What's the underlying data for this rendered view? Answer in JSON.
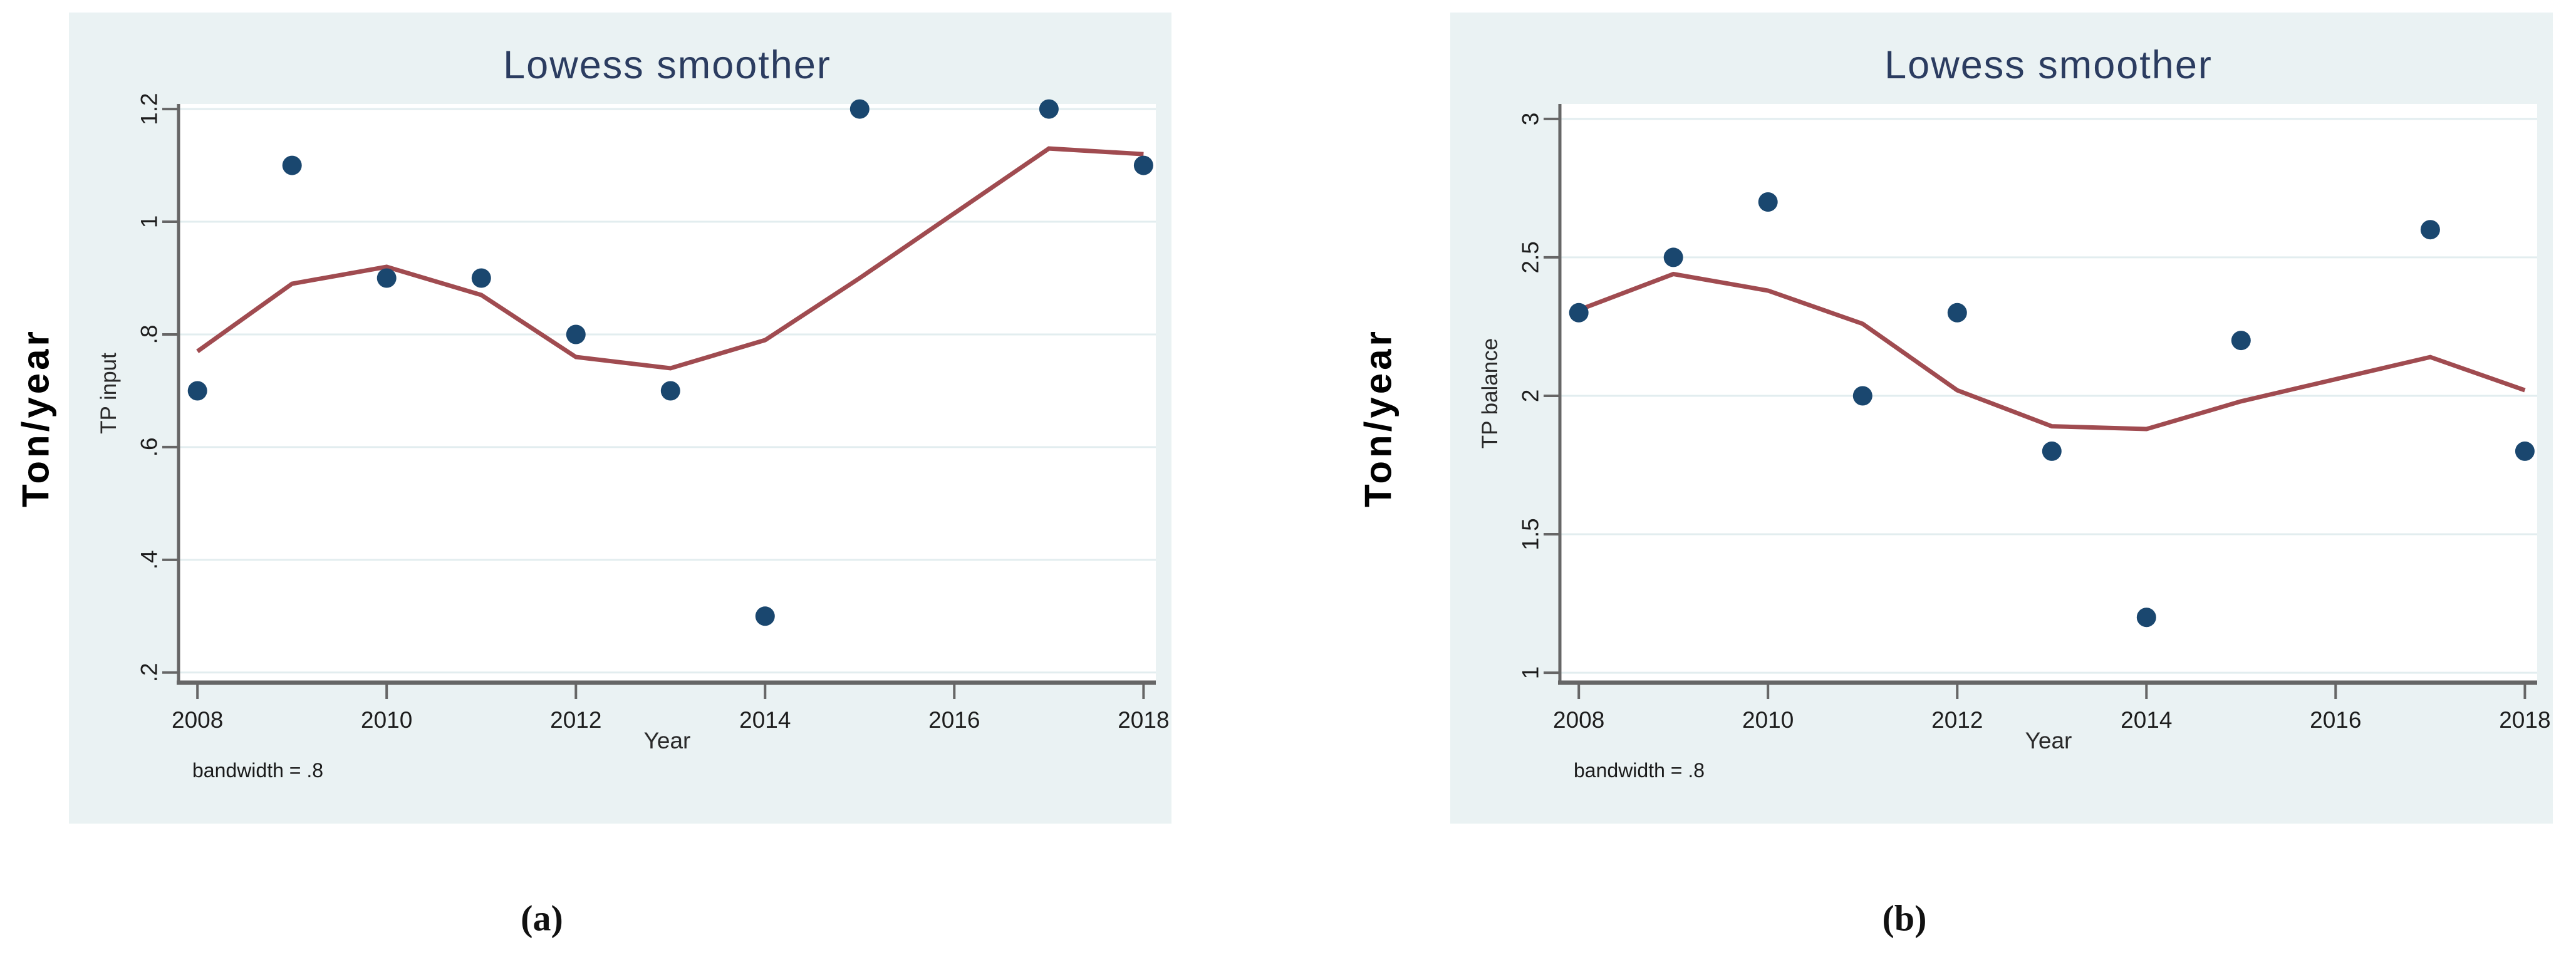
{
  "style": {
    "figure_bg": "#eaf2f3",
    "plot_bg": "#ffffff",
    "grid_color": "#e2edef",
    "axis_color": "#666666",
    "tick_label_color": "#1d1d1d",
    "title_color": "#2b3c60",
    "axis_title_color": "#2a2a2a",
    "note_color": "#1a1a1a",
    "point_color": "#1a476f",
    "line_color": "#a04b50"
  },
  "chart_data": [
    {
      "panel": "a",
      "type": "scatter",
      "title": "Lowess smoother",
      "xlabel": "Year",
      "ylabel": "TP input",
      "outer_ylabel": "Ton/year",
      "caption": "(a)",
      "note": "bandwidth = .8",
      "grid": true,
      "legend": "none",
      "x": [
        2008,
        2009,
        2010,
        2011,
        2012,
        2013,
        2014,
        2015,
        2017,
        2018
      ],
      "series": [
        {
          "name": "TP input points",
          "type": "scatter",
          "color": "#1a476f",
          "values": [
            0.7,
            1.1,
            0.9,
            0.9,
            0.8,
            0.7,
            0.3,
            1.2,
            1.2,
            1.1
          ]
        },
        {
          "name": "lowess TP input Year",
          "type": "line",
          "color": "#a04b50",
          "values": [
            0.77,
            0.89,
            0.92,
            0.87,
            0.76,
            0.74,
            0.79,
            0.9,
            1.13,
            1.12
          ]
        }
      ],
      "x_ticks": [
        2008,
        2010,
        2012,
        2014,
        2016,
        2018
      ],
      "y_ticks": [
        0.2,
        0.4,
        0.6,
        0.8,
        1,
        1.2
      ],
      "y_tick_labels": [
        ".2",
        ".4",
        ".6",
        ".8",
        "1",
        "1.2"
      ],
      "xlim": [
        2007.8,
        2018.13
      ],
      "ylim": [
        0.182,
        1.209
      ]
    },
    {
      "panel": "b",
      "type": "scatter",
      "title": "Lowess smoother",
      "xlabel": "Year",
      "ylabel": "TP balance",
      "outer_ylabel": "Ton/year",
      "caption": "(b)",
      "note": "bandwidth = .8",
      "grid": true,
      "legend": "none",
      "x": [
        2008,
        2009,
        2010,
        2011,
        2012,
        2013,
        2014,
        2015,
        2017,
        2018
      ],
      "series": [
        {
          "name": "TP balance points",
          "type": "scatter",
          "color": "#1a476f",
          "values": [
            2.3,
            2.5,
            2.7,
            2.0,
            2.3,
            1.8,
            1.2,
            2.2,
            2.6,
            1.8
          ]
        },
        {
          "name": "lowess TP balance Year",
          "type": "line",
          "color": "#a04b50",
          "values": [
            2.31,
            2.44,
            2.38,
            2.26,
            2.02,
            1.89,
            1.88,
            1.98,
            2.14,
            2.02
          ]
        }
      ],
      "x_ticks": [
        2008,
        2010,
        2012,
        2014,
        2016,
        2018
      ],
      "y_ticks": [
        1,
        1.5,
        2,
        2.5,
        3
      ],
      "y_tick_labels": [
        "1",
        "1.5",
        "2",
        "2.5",
        "3"
      ],
      "xlim": [
        2007.8,
        2018.13
      ],
      "ylim": [
        0.964,
        3.054
      ]
    }
  ]
}
